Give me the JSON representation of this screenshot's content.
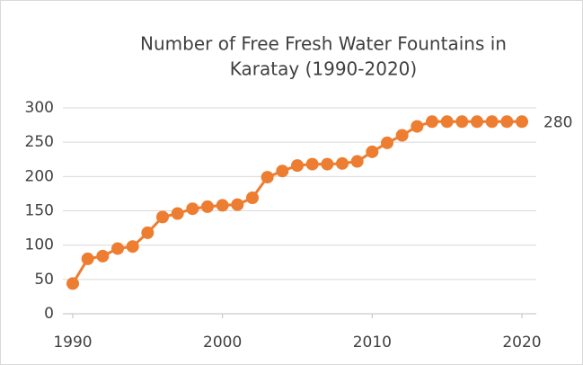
{
  "chart_data": {
    "type": "line",
    "title": [
      "Number of Free Fresh Water Fountains in",
      "Karatay (1990-2020)"
    ],
    "x": [
      1990,
      1991,
      1992,
      1993,
      1994,
      1995,
      1996,
      1997,
      1998,
      1999,
      2000,
      2001,
      2002,
      2003,
      2004,
      2005,
      2006,
      2007,
      2008,
      2009,
      2010,
      2011,
      2012,
      2013,
      2014,
      2015,
      2016,
      2017,
      2018,
      2019,
      2020
    ],
    "series": [
      {
        "color": "#ED7D31",
        "values": [
          44,
          80,
          84,
          95,
          98,
          118,
          141,
          146,
          153,
          156,
          158,
          159,
          169,
          199,
          208,
          216,
          218,
          218,
          219,
          222,
          236,
          249,
          260,
          273,
          280,
          280,
          280,
          280,
          280,
          280,
          280
        ]
      }
    ],
    "xlim": [
      1990,
      2020
    ],
    "xticks": [
      1990,
      2000,
      2010,
      2020
    ],
    "ylim": [
      0,
      300
    ],
    "yticks": [
      0,
      50,
      100,
      150,
      200,
      250,
      300
    ],
    "grid": true,
    "labeled_point": 30
  }
}
